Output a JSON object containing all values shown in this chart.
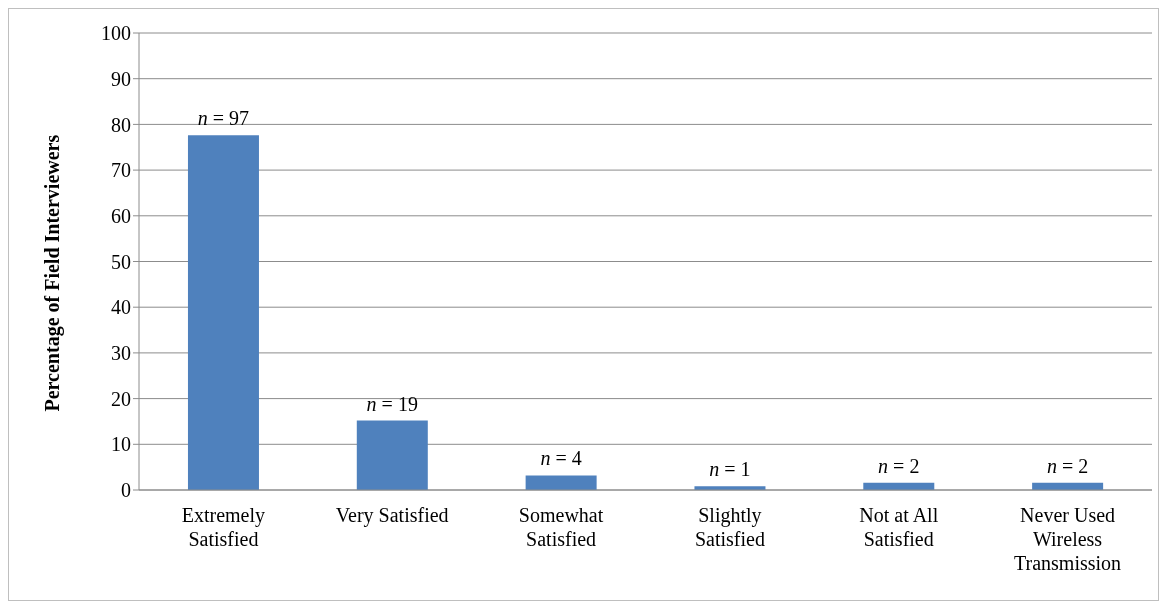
{
  "chart_data": {
    "type": "bar",
    "ylabel": "Percentage of Field Interviewers",
    "categories": [
      "Extremely Satisfied",
      "Very Satisfied",
      "Somewhat Satisfied",
      "Slightly Satisfied",
      "Not at All Satisfied",
      "Never Used Wireless Transmission"
    ],
    "values": [
      77.6,
      15.2,
      3.2,
      0.8,
      1.6,
      1.6
    ],
    "annotations": [
      {
        "text": "n = 97",
        "x": "Extremely Satisfied",
        "y": 77.6
      },
      {
        "text": "n = 19",
        "x": "Very Satisfied",
        "y": 15.2
      },
      {
        "text": "n = 4",
        "x": "Somewhat Satisfied",
        "y": 3.2
      },
      {
        "text": "n = 1",
        "x": "Slightly Satisfied",
        "y": 0.8
      },
      {
        "text": "n = 2",
        "x": "Not at All Satisfied",
        "y": 1.6
      },
      {
        "text": "n = 2",
        "x": "Never Used Wireless Transmission",
        "y": 1.6
      }
    ],
    "color": "#4f81bd",
    "ylim": [
      0,
      100
    ],
    "yticks": [
      0,
      10,
      20,
      30,
      40,
      50,
      60,
      70,
      80,
      90,
      100
    ],
    "grid": "y"
  }
}
